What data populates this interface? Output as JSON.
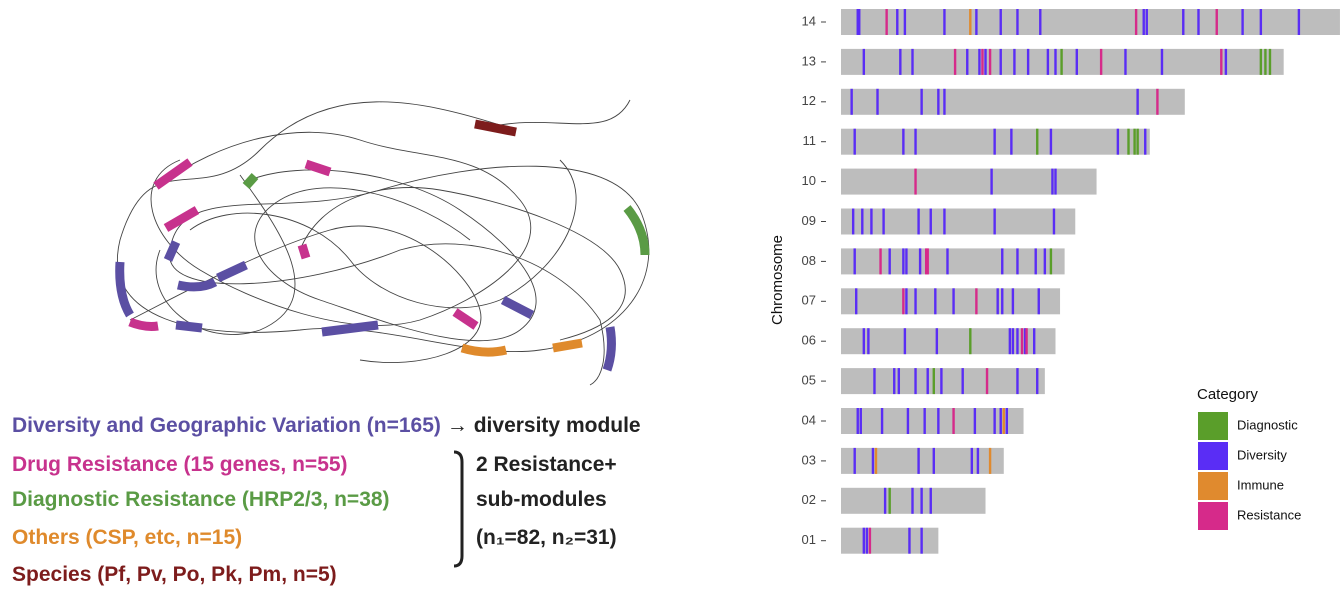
{
  "diagram": {
    "legend": [
      {
        "text": "Diversity and Geographic Variation (n=165)",
        "color": "#5b4fa3"
      },
      {
        "text": "Drug Resistance (15 genes, n=55)",
        "color": "#c7328d"
      },
      {
        "text": "Diagnostic Resistance (HRP2/3, n=38)",
        "color": "#5a9b45"
      },
      {
        "text": "Others (CSP, etc, n=15)",
        "color": "#df8a2c"
      },
      {
        "text": "Species (Pf, Pv, Po, Pk, Pm, n=5)",
        "color": "#7d1c1c"
      }
    ],
    "arrow_text": "→ diversity module",
    "bracket_lines": [
      "2 Resistance+",
      "sub-modules",
      "(n₁=82, n₂=31)"
    ]
  },
  "chart_data": {
    "type": "track",
    "y_label": "Chromosome",
    "legend_title": "Category",
    "categories": [
      "14",
      "13",
      "12",
      "11",
      "10",
      "09",
      "08",
      "07",
      "06",
      "05",
      "04",
      "03",
      "02",
      "01"
    ],
    "lengths": [
      3.28,
      2.91,
      2.26,
      2.03,
      1.68,
      1.54,
      1.47,
      1.44,
      1.41,
      1.34,
      1.2,
      1.07,
      0.95,
      0.64
    ],
    "bar_color": "#bdbdbd",
    "xlim": [
      0,
      3.3
    ],
    "series": [
      {
        "name": "Diagnostic",
        "color": "#5a9e2a",
        "chromosomes": [
          "13",
          "13",
          "13",
          "13",
          "11",
          "11",
          "11",
          "11",
          "08",
          "06",
          "05",
          "02"
        ],
        "x": [
          1.45,
          2.76,
          2.79,
          2.82,
          1.29,
          1.89,
          1.93,
          1.95,
          1.38,
          0.85,
          0.61,
          0.32
        ]
      },
      {
        "name": "Diversity",
        "color": "#5a2df5",
        "chromosomes": [
          "14",
          "14",
          "14",
          "14",
          "14",
          "14",
          "14",
          "14",
          "14",
          "14",
          "14",
          "14",
          "14",
          "14",
          "14",
          "14",
          "13",
          "13",
          "13",
          "13",
          "13",
          "13",
          "13",
          "13",
          "13",
          "13",
          "13",
          "13",
          "13",
          "13",
          "13",
          "12",
          "12",
          "12",
          "12",
          "12",
          "12",
          "11",
          "11",
          "11",
          "11",
          "11",
          "11",
          "11",
          "11",
          "10",
          "10",
          "10",
          "09",
          "09",
          "09",
          "09",
          "09",
          "09",
          "09",
          "09",
          "09",
          "08",
          "08",
          "08",
          "08",
          "08",
          "08",
          "08",
          "08",
          "08",
          "08",
          "07",
          "07",
          "07",
          "07",
          "07",
          "07",
          "07",
          "07",
          "07",
          "06",
          "06",
          "06",
          "06",
          "06",
          "06",
          "06",
          "06",
          "06",
          "05",
          "05",
          "05",
          "05",
          "05",
          "05",
          "05",
          "05",
          "05",
          "04",
          "04",
          "04",
          "04",
          "04",
          "04",
          "04",
          "04",
          "04",
          "04",
          "03",
          "03",
          "03",
          "03",
          "03",
          "03",
          "02",
          "02",
          "02",
          "02",
          "01",
          "01",
          "01",
          "01"
        ],
        "x": [
          0.11,
          0.12,
          0.37,
          0.42,
          0.68,
          0.89,
          1.05,
          1.16,
          1.31,
          1.99,
          2.01,
          2.25,
          2.35,
          2.64,
          2.76,
          3.01,
          0.15,
          0.39,
          0.47,
          0.83,
          0.91,
          0.95,
          1.05,
          1.14,
          1.23,
          1.36,
          1.41,
          1.55,
          1.87,
          2.11,
          2.53,
          0.07,
          0.24,
          0.53,
          0.64,
          0.68,
          1.95,
          0.09,
          0.41,
          0.49,
          1.01,
          1.12,
          1.38,
          1.82,
          2.0,
          0.99,
          1.39,
          1.41,
          0.08,
          0.14,
          0.2,
          0.28,
          0.51,
          0.59,
          0.68,
          1.01,
          1.4,
          0.09,
          0.32,
          0.41,
          0.43,
          0.52,
          0.7,
          1.06,
          1.16,
          1.28,
          1.34,
          0.1,
          0.43,
          0.49,
          0.62,
          0.74,
          1.03,
          1.06,
          1.13,
          1.3,
          0.15,
          0.18,
          0.42,
          0.63,
          1.11,
          1.13,
          1.16,
          1.21,
          1.27,
          0.22,
          0.35,
          0.38,
          0.49,
          0.57,
          0.66,
          0.8,
          1.16,
          1.29,
          0.11,
          0.13,
          0.27,
          0.44,
          0.55,
          0.64,
          0.88,
          1.01,
          1.05,
          1.09,
          0.09,
          0.21,
          0.51,
          0.61,
          0.86,
          0.9,
          0.29,
          0.47,
          0.53,
          0.59,
          0.15,
          0.17,
          0.45,
          0.53
        ]
      },
      {
        "name": "Immune",
        "color": "#e08a2e",
        "chromosomes": [
          "14",
          "04",
          "03",
          "03"
        ],
        "x": [
          0.85,
          1.07,
          0.23,
          0.98
        ]
      },
      {
        "name": "Resistance",
        "color": "#d62a8a",
        "chromosomes": [
          "14",
          "14",
          "14",
          "13",
          "13",
          "13",
          "13",
          "13",
          "12",
          "10",
          "08",
          "08",
          "08",
          "07",
          "07",
          "06",
          "06",
          "05",
          "04",
          "01"
        ],
        "x": [
          0.3,
          1.94,
          2.47,
          0.75,
          0.93,
          0.98,
          1.71,
          2.5,
          2.08,
          0.49,
          0.26,
          0.56,
          0.57,
          0.41,
          0.89,
          1.19,
          1.22,
          0.96,
          0.74,
          0.19
        ]
      }
    ]
  }
}
